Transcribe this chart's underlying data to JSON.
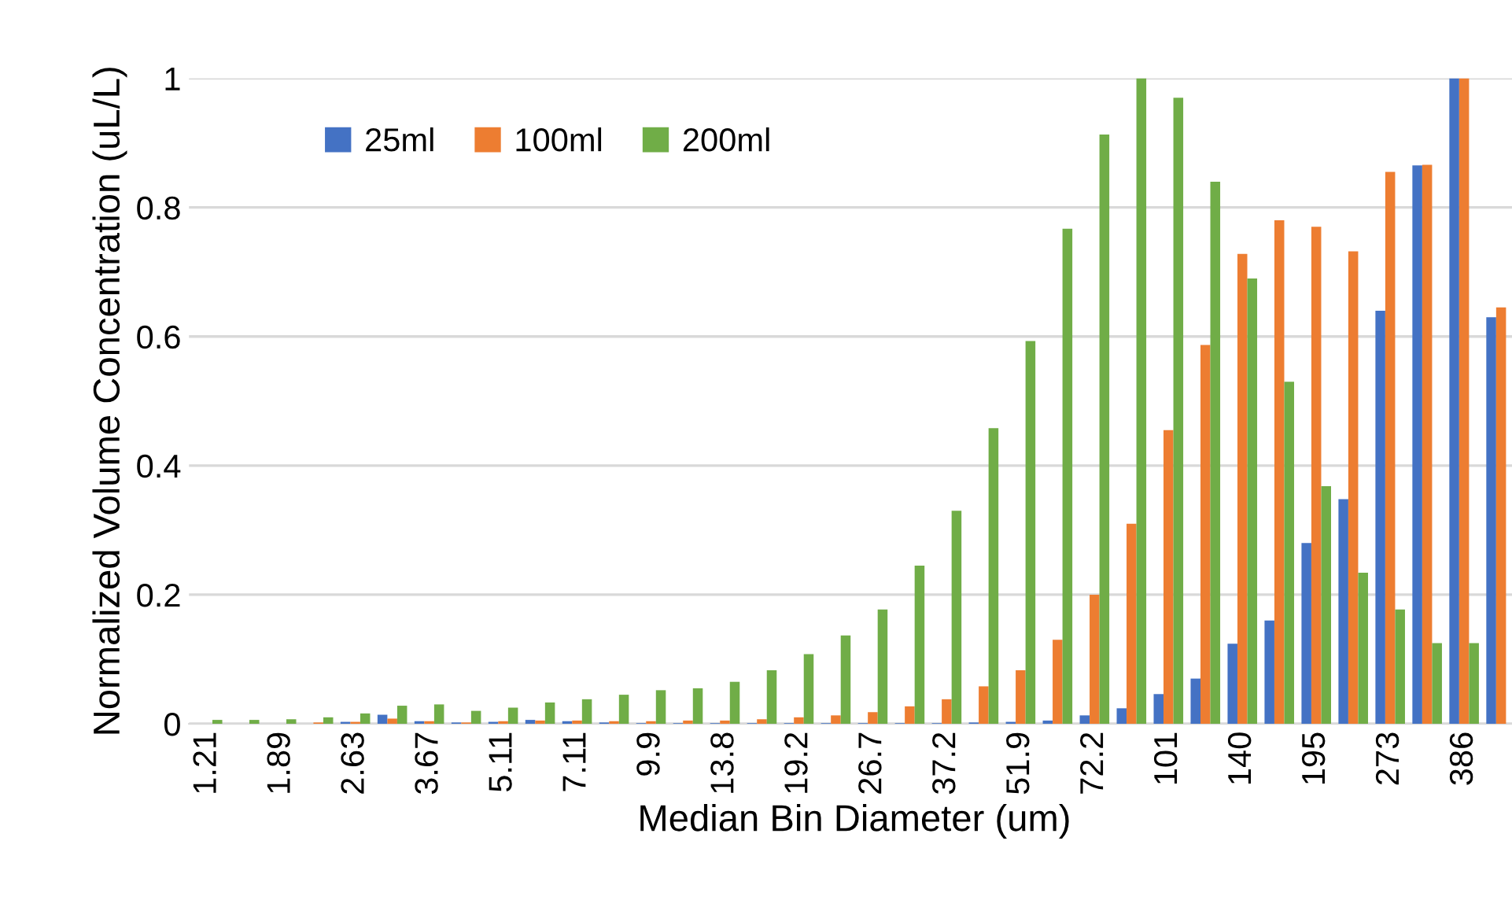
{
  "chart_data": {
    "type": "bar",
    "xlabel": "Median Bin Diameter (um)",
    "ylabel": "Normalized Volume Concentration (uL/L)",
    "categories": [
      "1.21",
      null,
      "1.89",
      null,
      "2.63",
      null,
      "3.67",
      null,
      "5.11",
      null,
      "7.11",
      null,
      "9.9",
      null,
      "13.8",
      null,
      "19.2",
      null,
      "26.7",
      null,
      "37.2",
      null,
      "51.9",
      null,
      "72.2",
      null,
      "101",
      null,
      "140",
      null,
      "195",
      null,
      "273",
      null,
      "386",
      null
    ],
    "series": [
      {
        "name": "25ml",
        "color": "#4472c4",
        "values": [
          0,
          0,
          0,
          0,
          0.003,
          0.014,
          0.004,
          0.002,
          0.003,
          0.006,
          0.004,
          0.002,
          0.001,
          0.001,
          0.001,
          0.001,
          0.001,
          0.001,
          0.001,
          0.001,
          0.001,
          0.002,
          0.003,
          0.005,
          0.013,
          0.024,
          0.046,
          0.07,
          0.124,
          0.16,
          0.28,
          0.348,
          0.64,
          0.865,
          1.0,
          0.63
        ]
      },
      {
        "name": "100ml",
        "color": "#ed7d31",
        "values": [
          0,
          0,
          0,
          0.002,
          0.003,
          0.008,
          0.004,
          0.002,
          0.004,
          0.005,
          0.005,
          0.004,
          0.004,
          0.005,
          0.005,
          0.007,
          0.01,
          0.013,
          0.018,
          0.027,
          0.038,
          0.058,
          0.083,
          0.13,
          0.2,
          0.31,
          0.455,
          0.587,
          0.728,
          0.78,
          0.77,
          0.732,
          0.855,
          0.866,
          1.0,
          0.645
        ]
      },
      {
        "name": "200ml",
        "color": "#70ad47",
        "values": [
          0.006,
          0.006,
          0.007,
          0.01,
          0.016,
          0.028,
          0.03,
          0.02,
          0.025,
          0.033,
          0.038,
          0.045,
          0.052,
          0.055,
          0.065,
          0.083,
          0.108,
          0.137,
          0.177,
          0.245,
          0.33,
          0.458,
          0.593,
          0.767,
          0.913,
          1.0,
          0.97,
          0.84,
          0.69,
          0.53,
          0.368,
          0.234,
          0.177,
          0.125,
          0.125,
          null
        ]
      }
    ],
    "ylim": [
      0,
      1
    ],
    "yticks": [
      0,
      0.2,
      0.4,
      0.6,
      0.8,
      1
    ],
    "grid": "y",
    "legend": "top left"
  }
}
